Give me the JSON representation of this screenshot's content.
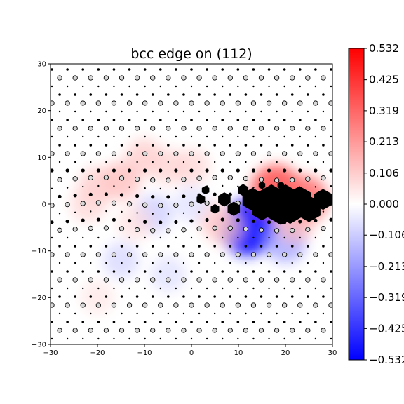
{
  "chart_data": {
    "type": "scatter",
    "title": "bcc edge on (112)",
    "xlabel": "",
    "ylabel": "",
    "xlim": [
      -30,
      30
    ],
    "ylim": [
      -30,
      30
    ],
    "x_ticks": [
      -30,
      -20,
      -10,
      0,
      10,
      20,
      30
    ],
    "y_ticks": [
      -30,
      -20,
      -10,
      0,
      10,
      20,
      30
    ],
    "x_tick_labels": [
      "−30",
      "−20",
      "−10",
      "0",
      "10",
      "20",
      "30"
    ],
    "y_tick_labels": [
      "−30",
      "−20",
      "−10",
      "0",
      "10",
      "20",
      "30"
    ],
    "grid": false,
    "colormap": "bwr",
    "colorbar": {
      "min": -0.532,
      "max": 0.532,
      "ticks": [
        0.532,
        0.425,
        0.319,
        0.213,
        0.106,
        0.0,
        -0.106,
        -0.213,
        -0.319,
        -0.425,
        -0.532
      ],
      "tick_labels": [
        "0.532",
        "0.425",
        "0.319",
        "0.213",
        "0.106",
        "0.000",
        "−0.106",
        "−0.213",
        "−0.319",
        "−0.425",
        "−0.532"
      ]
    },
    "field_blobs": [
      {
        "x": 12,
        "y": -5,
        "value": -0.45
      },
      {
        "x": 20,
        "y": -8,
        "value": -0.2
      },
      {
        "x": 18,
        "y": 3,
        "value": 0.35
      },
      {
        "x": 24,
        "y": 1,
        "value": 0.3
      },
      {
        "x": -15,
        "y": 5,
        "value": 0.15
      },
      {
        "x": -10,
        "y": 10,
        "value": 0.12
      },
      {
        "x": -5,
        "y": 8,
        "value": 0.1
      },
      {
        "x": 0,
        "y": 8,
        "value": 0.1
      },
      {
        "x": -20,
        "y": 4,
        "value": 0.12
      },
      {
        "x": -22,
        "y": 0,
        "value": 0.1
      },
      {
        "x": -8,
        "y": -2,
        "value": -0.12
      },
      {
        "x": -15,
        "y": -12,
        "value": -0.1
      },
      {
        "x": -5,
        "y": -15,
        "value": -0.08
      },
      {
        "x": 5,
        "y": -3,
        "value": 0.1
      },
      {
        "x": 7,
        "y": -5,
        "value": 0.12
      },
      {
        "x": 22,
        "y": -4,
        "value": 0.15
      },
      {
        "x": -12,
        "y": -4,
        "value": 0.08
      },
      {
        "x": -20,
        "y": -20,
        "value": 0.06
      },
      {
        "x": 0,
        "y": 0,
        "value": -0.08
      }
    ],
    "disregistry_hexagons": [
      {
        "x": 13,
        "y": 1,
        "size": 2.0
      },
      {
        "x": 15,
        "y": -1,
        "size": 2.0
      },
      {
        "x": 17,
        "y": 1,
        "size": 2.6
      },
      {
        "x": 19,
        "y": -1,
        "size": 2.8
      },
      {
        "x": 20,
        "y": 1,
        "size": 2.6
      },
      {
        "x": 21,
        "y": -1,
        "size": 2.6
      },
      {
        "x": 23,
        "y": 1,
        "size": 2.3
      },
      {
        "x": 25,
        "y": -1,
        "size": 2.3
      },
      {
        "x": 28,
        "y": 1,
        "size": 1.8
      },
      {
        "x": 11,
        "y": 3,
        "size": 1.0
      },
      {
        "x": 9,
        "y": -1,
        "size": 1.2
      },
      {
        "x": 7,
        "y": 1,
        "size": 1.2
      },
      {
        "x": 5,
        "y": -1,
        "size": 0.8
      },
      {
        "x": 3,
        "y": 3,
        "size": 0.7
      },
      {
        "x": 2,
        "y": 1,
        "size": 0.8
      },
      {
        "x": 15,
        "y": 4,
        "size": 0.6
      },
      {
        "x": 19,
        "y": 4,
        "size": 0.6
      }
    ]
  }
}
